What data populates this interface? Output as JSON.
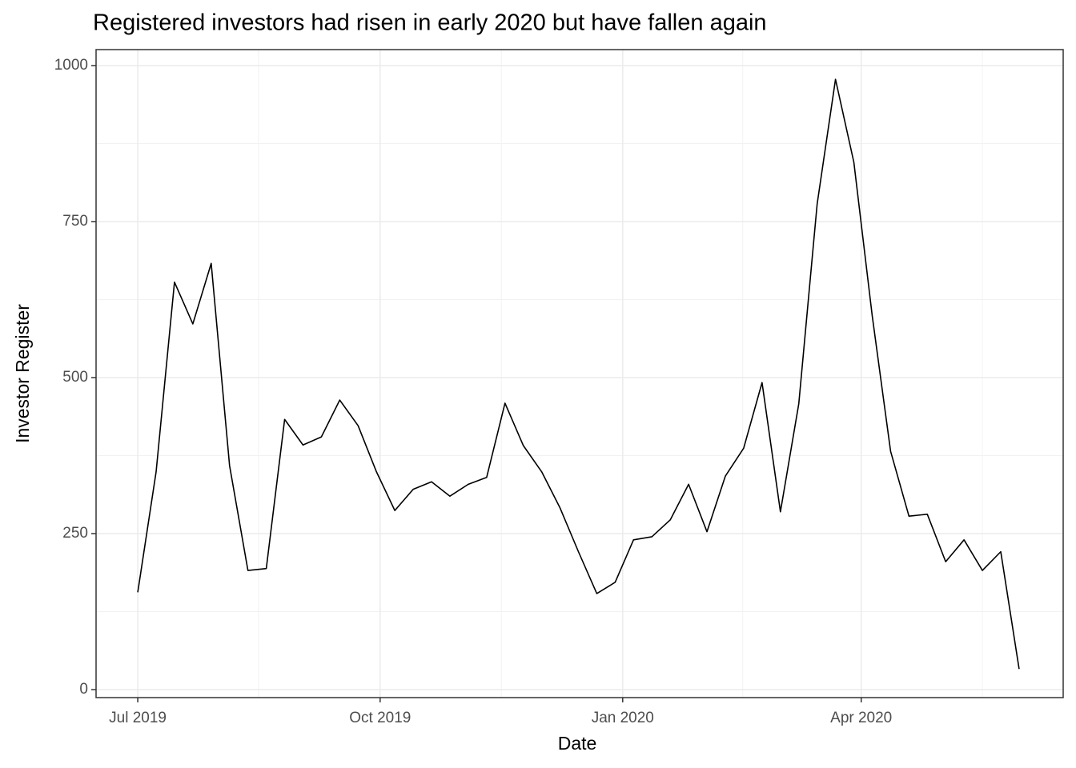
{
  "chart_data": {
    "type": "line",
    "title": "Registered investors had risen in early 2020 but have fallen again",
    "x_label": "Date",
    "y_label": "Investor Register",
    "x": [
      0,
      1,
      2,
      3,
      4,
      5,
      6,
      7,
      8,
      9,
      10,
      11,
      12,
      13,
      14,
      15,
      16,
      17,
      18,
      19,
      20,
      21,
      22,
      23,
      24,
      25,
      26,
      27,
      28,
      29,
      30,
      31,
      32,
      33,
      34,
      35,
      36,
      37,
      38,
      39,
      40,
      41,
      42,
      43,
      44,
      45,
      46,
      47,
      48
    ],
    "series": [
      {
        "name": "Investor Register",
        "color": "#000000",
        "values": [
          156,
          349,
          653,
          586,
          683,
          359,
          191,
          194,
          433,
          392,
          405,
          464,
          423,
          349,
          287,
          321,
          333,
          310,
          329,
          340,
          459,
          391,
          349,
          291,
          221,
          154,
          172,
          240,
          245,
          272,
          329,
          253,
          342,
          387,
          492,
          285,
          458,
          778,
          978,
          845,
          599,
          382,
          278,
          281,
          205,
          240,
          191,
          221,
          33
        ]
      }
    ],
    "xlim": [
      -2.27,
      50.4
    ],
    "xticks": [
      {
        "value": 0,
        "label": "Jul 2019"
      },
      {
        "value": 13.2,
        "label": "Oct 2019"
      },
      {
        "value": 26.41,
        "label": "Jan 2020"
      },
      {
        "value": 39.4,
        "label": "Apr 2020"
      }
    ],
    "x_minor_ticks": [
      6.58,
      19.8,
      32.95,
      46.0
    ],
    "ylim": [
      -12.8,
      1025.6
    ],
    "yticks": [
      0,
      250,
      500,
      750,
      1000
    ],
    "y_minor_ticks": [
      125,
      375,
      625,
      875
    ],
    "grid": true
  }
}
